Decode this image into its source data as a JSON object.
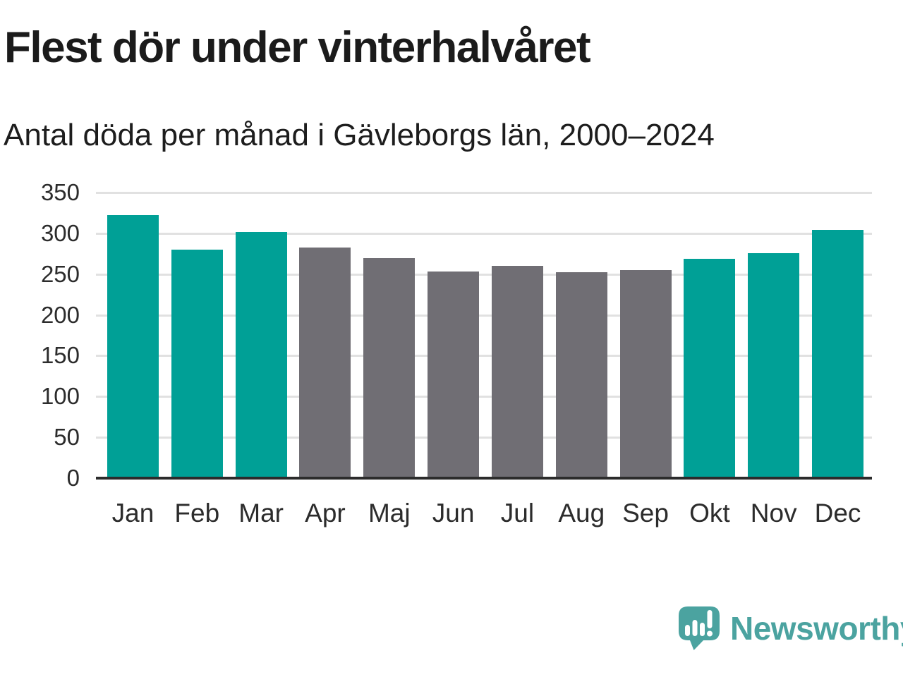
{
  "title": "Flest dör under vinterhalvåret",
  "subtitle": "Antal döda per månad i Gävleborgs län, 2000–2024",
  "chart_data": {
    "type": "bar",
    "title": "Flest dör under vinterhalvåret",
    "subtitle": "Antal döda per månad i Gävleborgs län, 2000–2024",
    "categories": [
      "Jan",
      "Feb",
      "Mar",
      "Apr",
      "Maj",
      "Jun",
      "Jul",
      "Aug",
      "Sep",
      "Okt",
      "Nov",
      "Dec"
    ],
    "values": [
      322,
      280,
      302,
      283,
      270,
      253,
      260,
      252,
      255,
      269,
      276,
      304
    ],
    "season": [
      "winter",
      "winter",
      "winter",
      "summer",
      "summer",
      "summer",
      "summer",
      "summer",
      "summer",
      "winter",
      "winter",
      "winter"
    ],
    "xlabel": "",
    "ylabel": "",
    "ylim": [
      0,
      350
    ],
    "yticks": [
      0,
      50,
      100,
      150,
      200,
      250,
      300,
      350
    ],
    "grid": true,
    "legend": false,
    "colors": {
      "winter": "#00A096",
      "summer": "#706E74"
    }
  },
  "branding": {
    "logo_text": "Newsworthy",
    "logo_color": "#4BA3A0",
    "logo_icon": "speech-bubble-bar-chart-icon"
  },
  "style_colors": {
    "gridline": "#e1e1e1",
    "axis": "#2c2c2c",
    "text": "#1d1d1d"
  }
}
